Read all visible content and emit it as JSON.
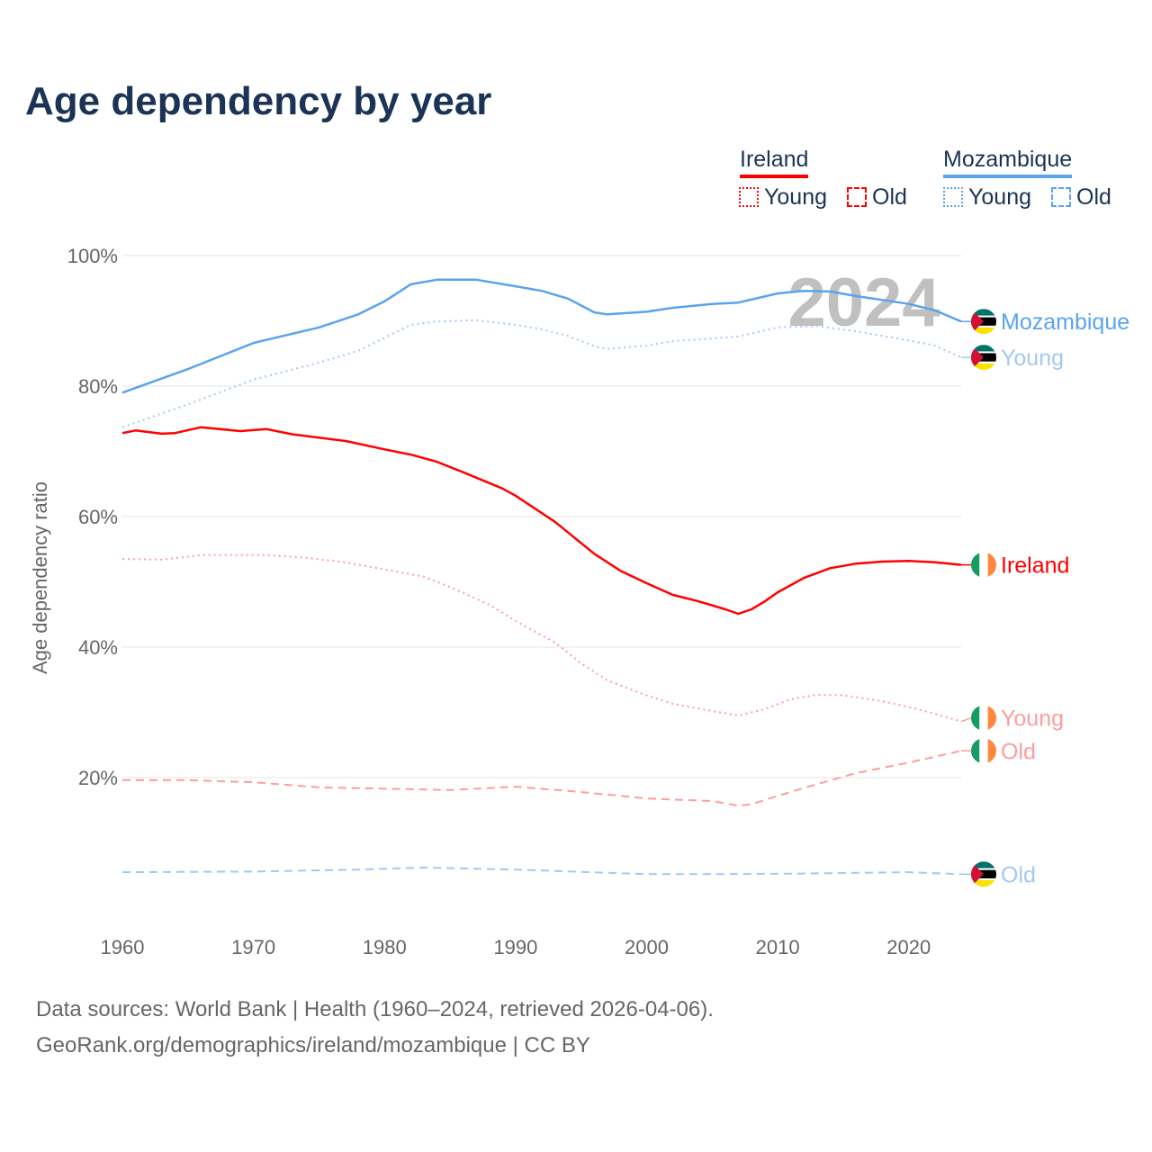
{
  "title": "Age dependency by year",
  "legend": {
    "groups": [
      {
        "name": "Ireland",
        "color": "#ff0000",
        "items": [
          "Young",
          "Old"
        ]
      },
      {
        "name": "Mozambique",
        "color": "#5ba3ec",
        "items": [
          "Young",
          "Old"
        ]
      }
    ]
  },
  "watermark_year": "2024",
  "footer": {
    "line1": "Data sources: World Bank | Health (1960–2024, retrieved 2026-04-06).",
    "line2": "GeoRank.org/demographics/ireland/mozambique | CC BY"
  },
  "chart_data": {
    "type": "line",
    "title": "Age dependency by year",
    "xlabel": "",
    "ylabel": "Age dependency ratio",
    "xlim": [
      1960,
      2024
    ],
    "ylim": [
      0,
      100
    ],
    "xticks": [
      1960,
      1970,
      1980,
      1990,
      2000,
      2010,
      2020
    ],
    "yticks": [
      {
        "v": 20,
        "label": "20%"
      },
      {
        "v": 40,
        "label": "40%"
      },
      {
        "v": 60,
        "label": "60%"
      },
      {
        "v": 80,
        "label": "80%"
      },
      {
        "v": 100,
        "label": "100%"
      }
    ],
    "grid": true,
    "legend_position": "top-right",
    "series": [
      {
        "name": "Mozambique",
        "end_label": "Mozambique",
        "country": "mozambique",
        "color": "#5ba3ec",
        "style": "solid",
        "points": [
          [
            1960,
            79.0
          ],
          [
            1965,
            82.6
          ],
          [
            1970,
            86.6
          ],
          [
            1975,
            89.0
          ],
          [
            1978,
            91.0
          ],
          [
            1980,
            93.0
          ],
          [
            1982,
            95.6
          ],
          [
            1984,
            96.3
          ],
          [
            1987,
            96.3
          ],
          [
            1990,
            95.3
          ],
          [
            1992,
            94.6
          ],
          [
            1994,
            93.4
          ],
          [
            1996,
            91.3
          ],
          [
            1997,
            91.0
          ],
          [
            2000,
            91.4
          ],
          [
            2002,
            92.0
          ],
          [
            2005,
            92.6
          ],
          [
            2007,
            92.8
          ],
          [
            2010,
            94.2
          ],
          [
            2012,
            94.6
          ],
          [
            2014,
            94.5
          ],
          [
            2016,
            93.8
          ],
          [
            2018,
            93.2
          ],
          [
            2020,
            92.6
          ],
          [
            2022,
            91.6
          ],
          [
            2024,
            89.9
          ]
        ]
      },
      {
        "name": "Mozambique Young",
        "end_label": "Young",
        "country": "mozambique",
        "color": "#a3c8f2",
        "style": "dotted",
        "points": [
          [
            1960,
            73.7
          ],
          [
            1965,
            77.2
          ],
          [
            1970,
            81.0
          ],
          [
            1975,
            83.6
          ],
          [
            1978,
            85.4
          ],
          [
            1980,
            87.4
          ],
          [
            1982,
            89.4
          ],
          [
            1984,
            89.9
          ],
          [
            1987,
            90.1
          ],
          [
            1990,
            89.4
          ],
          [
            1992,
            88.7
          ],
          [
            1994,
            87.7
          ],
          [
            1996,
            86.1
          ],
          [
            1997,
            85.7
          ],
          [
            2000,
            86.2
          ],
          [
            2002,
            86.9
          ],
          [
            2005,
            87.3
          ],
          [
            2007,
            87.6
          ],
          [
            2010,
            89.0
          ],
          [
            2013,
            89.2
          ],
          [
            2016,
            88.4
          ],
          [
            2018,
            87.7
          ],
          [
            2020,
            87.0
          ],
          [
            2022,
            86.2
          ],
          [
            2024,
            84.4
          ]
        ]
      },
      {
        "name": "Mozambique Old",
        "end_label": "Old",
        "country": "mozambique",
        "color": "#a3c8f2",
        "style": "dashed",
        "points": [
          [
            1960,
            5.5
          ],
          [
            1970,
            5.6
          ],
          [
            1978,
            5.9
          ],
          [
            1983,
            6.2
          ],
          [
            1990,
            5.9
          ],
          [
            2000,
            5.2
          ],
          [
            2005,
            5.2
          ],
          [
            2012,
            5.3
          ],
          [
            2020,
            5.5
          ],
          [
            2024,
            5.2
          ]
        ]
      },
      {
        "name": "Ireland",
        "end_label": "Ireland",
        "country": "ireland",
        "color": "#ff0000",
        "style": "solid",
        "points": [
          [
            1960,
            72.8
          ],
          [
            1961,
            73.2
          ],
          [
            1963,
            72.7
          ],
          [
            1964,
            72.8
          ],
          [
            1966,
            73.7
          ],
          [
            1969,
            73.1
          ],
          [
            1971,
            73.4
          ],
          [
            1973,
            72.6
          ],
          [
            1977,
            71.6
          ],
          [
            1980,
            70.3
          ],
          [
            1982,
            69.5
          ],
          [
            1984,
            68.4
          ],
          [
            1986,
            66.8
          ],
          [
            1989,
            64.3
          ],
          [
            1990,
            63.2
          ],
          [
            1993,
            59.2
          ],
          [
            1996,
            54.3
          ],
          [
            1998,
            51.7
          ],
          [
            2000,
            49.8
          ],
          [
            2002,
            48.0
          ],
          [
            2004,
            47.0
          ],
          [
            2006,
            45.8
          ],
          [
            2007,
            45.1
          ],
          [
            2008,
            45.8
          ],
          [
            2009,
            47.0
          ],
          [
            2010,
            48.4
          ],
          [
            2012,
            50.6
          ],
          [
            2014,
            52.1
          ],
          [
            2016,
            52.8
          ],
          [
            2018,
            53.1
          ],
          [
            2020,
            53.2
          ],
          [
            2022,
            53.0
          ],
          [
            2024,
            52.6
          ]
        ]
      },
      {
        "name": "Ireland Young",
        "end_label": "Young",
        "country": "ireland",
        "color": "#ff9c9c",
        "style": "dotted",
        "points": [
          [
            1960,
            53.5
          ],
          [
            1963,
            53.4
          ],
          [
            1966,
            54.1
          ],
          [
            1971,
            54.1
          ],
          [
            1974,
            53.7
          ],
          [
            1977,
            53.0
          ],
          [
            1980,
            51.9
          ],
          [
            1983,
            50.8
          ],
          [
            1985,
            49.2
          ],
          [
            1988,
            46.5
          ],
          [
            1990,
            44.0
          ],
          [
            1993,
            40.7
          ],
          [
            1995,
            37.5
          ],
          [
            1997,
            34.9
          ],
          [
            2000,
            32.6
          ],
          [
            2002,
            31.3
          ],
          [
            2005,
            30.2
          ],
          [
            2007,
            29.5
          ],
          [
            2009,
            30.5
          ],
          [
            2011,
            32.0
          ],
          [
            2013,
            32.7
          ],
          [
            2015,
            32.6
          ],
          [
            2018,
            31.7
          ],
          [
            2020,
            30.8
          ],
          [
            2022,
            29.8
          ],
          [
            2024,
            28.6
          ]
        ]
      },
      {
        "name": "Ireland Old",
        "end_label": "Old",
        "country": "ireland",
        "color": "#ff9c9c",
        "style": "dashed",
        "points": [
          [
            1960,
            19.6
          ],
          [
            1965,
            19.6
          ],
          [
            1970,
            19.3
          ],
          [
            1975,
            18.5
          ],
          [
            1980,
            18.3
          ],
          [
            1985,
            18.1
          ],
          [
            1990,
            18.6
          ],
          [
            1995,
            17.8
          ],
          [
            2000,
            16.8
          ],
          [
            2005,
            16.4
          ],
          [
            2007,
            15.7
          ],
          [
            2008,
            15.9
          ],
          [
            2010,
            17.2
          ],
          [
            2013,
            19.0
          ],
          [
            2016,
            20.7
          ],
          [
            2020,
            22.3
          ],
          [
            2024,
            24.1
          ]
        ]
      }
    ]
  }
}
